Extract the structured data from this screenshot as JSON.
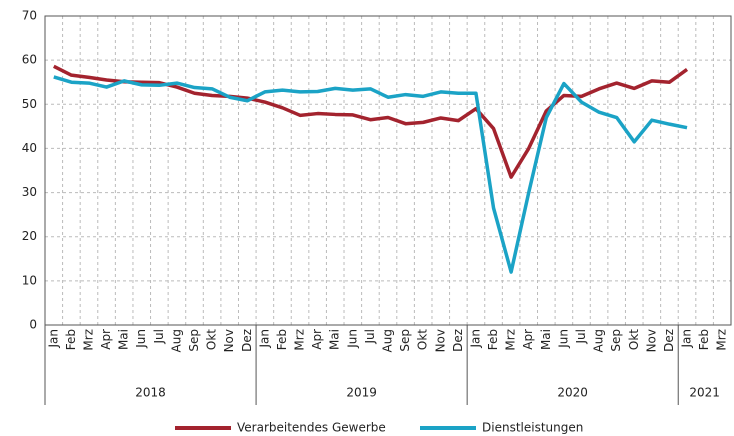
{
  "chart_data": {
    "type": "line",
    "groups": [
      {
        "label": "2018",
        "categories": [
          "Jan",
          "Feb",
          "Mrz",
          "Apr",
          "Mai",
          "Jun",
          "Jul",
          "Aug",
          "Sep",
          "Okt",
          "Nov",
          "Dez"
        ]
      },
      {
        "label": "2019",
        "categories": [
          "Jan",
          "Feb",
          "Mrz",
          "Apr",
          "Mai",
          "Jun",
          "Jul",
          "Aug",
          "Sep",
          "Okt",
          "Nov",
          "Dez"
        ]
      },
      {
        "label": "2020",
        "categories": [
          "Jan",
          "Feb",
          "Mrz",
          "Apr",
          "Mai",
          "Jun",
          "Jul",
          "Aug",
          "Sep",
          "Okt",
          "Nov",
          "Dez"
        ]
      },
      {
        "label": "2021",
        "categories": [
          "Jan",
          "Feb",
          "Mrz"
        ]
      }
    ],
    "series": [
      {
        "name": "Verarbeitendes Gewerbe",
        "color": "#a3232e",
        "values": [
          58.6,
          56.6,
          56.1,
          55.5,
          55.1,
          55.0,
          54.9,
          53.9,
          52.5,
          52.0,
          51.8,
          51.4,
          50.5,
          49.2,
          47.5,
          47.9,
          47.7,
          47.6,
          46.5,
          47.0,
          45.6,
          45.9,
          46.9,
          46.3,
          49.0,
          44.5,
          33.5,
          40.0,
          48.5,
          52.0,
          51.8,
          53.5,
          54.8,
          53.6,
          55.3,
          55.0,
          57.9,
          null,
          null
        ]
      },
      {
        "name": "Dienstleistungen",
        "color": "#1ba3c6",
        "values": [
          56.2,
          55.0,
          54.8,
          53.9,
          55.3,
          54.4,
          54.3,
          54.8,
          53.8,
          53.5,
          51.6,
          50.8,
          52.8,
          53.2,
          52.8,
          52.9,
          53.6,
          53.2,
          53.5,
          51.6,
          52.2,
          51.8,
          52.8,
          52.5,
          52.5,
          26.5,
          12.0,
          30.0,
          47.0,
          54.7,
          50.5,
          48.2,
          47.0,
          41.5,
          46.4,
          45.5,
          44.7,
          null,
          null
        ]
      }
    ],
    "ylim": [
      0,
      70
    ],
    "yticks": [
      0,
      10,
      20,
      30,
      40,
      50,
      60,
      70
    ],
    "grid": true,
    "legend": "bottom"
  }
}
